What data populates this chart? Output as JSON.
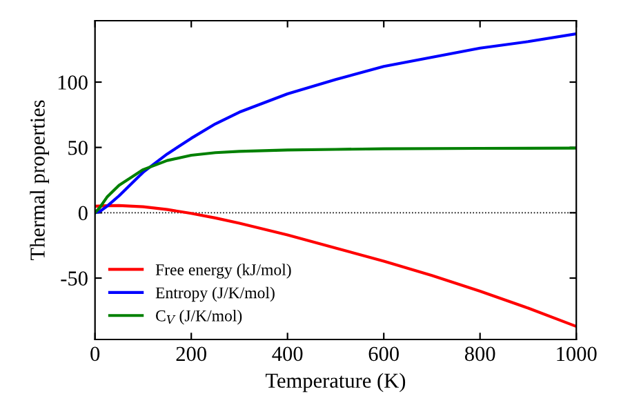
{
  "chart_data": {
    "type": "line",
    "xlabel": "Temperature (K)",
    "ylabel": "Thermal properties",
    "xlim": [
      0,
      1000
    ],
    "ylim": [
      -97,
      147
    ],
    "xticks": [
      0,
      200,
      400,
      600,
      800,
      1000
    ],
    "yticks": [
      -50,
      0,
      50,
      100
    ],
    "grid": false,
    "legend": "bottom left",
    "line_style": "solid",
    "marker": "none",
    "ref_lines": [
      {
        "axis": "y",
        "value": 0,
        "color": "#000000",
        "line_style": "dotted"
      }
    ],
    "series": [
      {
        "name": "Free energy (kJ/mol)",
        "color": "#ff0000",
        "x": [
          0,
          25,
          50,
          100,
          150,
          200,
          250,
          300,
          400,
          500,
          600,
          700,
          800,
          900,
          1000
        ],
        "values": [
          5,
          5.4,
          5.5,
          4.6,
          2.5,
          -0.5,
          -4,
          -8,
          -17,
          -27,
          -37,
          -48,
          -60,
          -73,
          -87
        ]
      },
      {
        "name": "Entropy (J/K/mol)",
        "color": "#0000ff",
        "x": [
          0,
          10,
          25,
          50,
          100,
          150,
          200,
          250,
          300,
          400,
          500,
          600,
          700,
          800,
          900,
          1000
        ],
        "values": [
          0,
          1,
          5,
          13,
          31,
          45,
          57,
          68,
          77,
          91,
          102,
          112,
          119,
          126,
          131,
          137
        ]
      },
      {
        "name": "C$_{V}$ (J/K/mol)",
        "color": "#008000",
        "x": [
          0,
          10,
          25,
          50,
          100,
          150,
          200,
          250,
          300,
          400,
          500,
          600,
          800,
          1000
        ],
        "values": [
          0,
          4,
          12,
          21,
          33,
          40,
          44,
          46,
          47,
          48,
          48.5,
          49,
          49.3,
          49.5
        ]
      }
    ]
  }
}
